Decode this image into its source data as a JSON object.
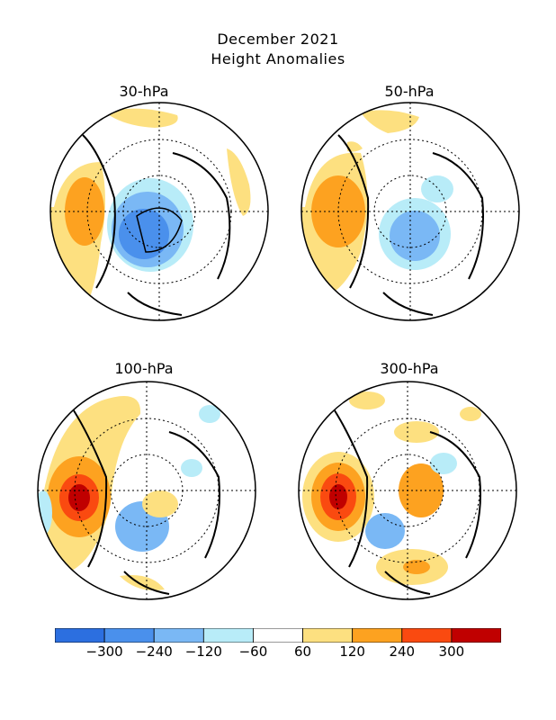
{
  "header": {
    "title_line1": "December 2021",
    "title_line2": "Height Anomalies"
  },
  "panels": [
    {
      "label": "30-hPa"
    },
    {
      "label": "50-hPa"
    },
    {
      "label": "100-hPa"
    },
    {
      "label": "300-hPa"
    }
  ],
  "colorbar": {
    "colors": [
      "#2c6fe0",
      "#4a90ec",
      "#7ab8f5",
      "#b8ecf8",
      "#ffffff",
      "#fde080",
      "#fda220",
      "#fa4a10",
      "#c00000"
    ],
    "labels": [
      "−300",
      "−240",
      "−120",
      "−60",
      "60",
      "120",
      "240",
      "300"
    ]
  }
}
